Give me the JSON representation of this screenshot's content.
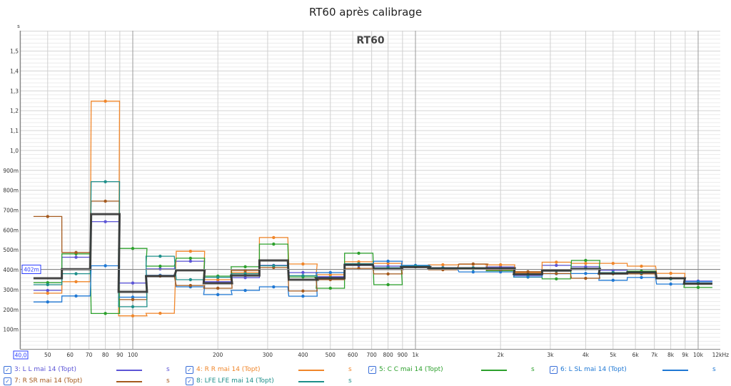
{
  "chart_data": {
    "type": "line",
    "title": "RT60 après calibrage",
    "plot_label": "RT60",
    "ylabel": "s",
    "xunit": "kHz",
    "x_scale": "log",
    "xlim": [
      40,
      12000
    ],
    "ylim": [
      0,
      1.6
    ],
    "grid": true,
    "cursor": {
      "y_label": "402m",
      "y_value": 0.402,
      "x_label": "40,0"
    },
    "x_ticks": [
      {
        "v": 50,
        "l": "50"
      },
      {
        "v": 60,
        "l": "60"
      },
      {
        "v": 70,
        "l": "70"
      },
      {
        "v": 80,
        "l": "80"
      },
      {
        "v": 90,
        "l": "90"
      },
      {
        "v": 100,
        "l": "100"
      },
      {
        "v": 200,
        "l": "200"
      },
      {
        "v": 300,
        "l": "300"
      },
      {
        "v": 400,
        "l": "400"
      },
      {
        "v": 500,
        "l": "500"
      },
      {
        "v": 600,
        "l": "600"
      },
      {
        "v": 700,
        "l": "700"
      },
      {
        "v": 800,
        "l": "800"
      },
      {
        "v": 900,
        "l": "900"
      },
      {
        "v": 1000,
        "l": "1k"
      },
      {
        "v": 2000,
        "l": "2k"
      },
      {
        "v": 3000,
        "l": "3k"
      },
      {
        "v": 4000,
        "l": "4k"
      },
      {
        "v": 5000,
        "l": "5k"
      },
      {
        "v": 6000,
        "l": "6k"
      },
      {
        "v": 7000,
        "l": "7k"
      },
      {
        "v": 8000,
        "l": "8k"
      },
      {
        "v": 9000,
        "l": "9k"
      },
      {
        "v": 10000,
        "l": "10k"
      },
      {
        "v": 12000,
        "l": "12kHz"
      }
    ],
    "y_ticks": [
      {
        "v": 0.1,
        "l": "100m"
      },
      {
        "v": 0.2,
        "l": "200m"
      },
      {
        "v": 0.3,
        "l": "300m"
      },
      {
        "v": 0.4,
        "l": "400m"
      },
      {
        "v": 0.5,
        "l": "500m"
      },
      {
        "v": 0.6,
        "l": "600m"
      },
      {
        "v": 0.7,
        "l": "700m"
      },
      {
        "v": 0.8,
        "l": "800m"
      },
      {
        "v": 0.9,
        "l": "900m"
      },
      {
        "v": 1.0,
        "l": "1,0"
      },
      {
        "v": 1.1,
        "l": "1,1"
      },
      {
        "v": 1.2,
        "l": "1,2"
      },
      {
        "v": 1.3,
        "l": "1,3"
      },
      {
        "v": 1.4,
        "l": "1,4"
      },
      {
        "v": 1.5,
        "l": "1,5"
      }
    ],
    "bands_hz": [
      50,
      63,
      80,
      100,
      125,
      160,
      200,
      250,
      315,
      400,
      500,
      630,
      800,
      1000,
      1250,
      1600,
      2000,
      2500,
      3150,
      4000,
      5000,
      6300,
      8000,
      10000
    ],
    "series": [
      {
        "name": "3: L L mai 14 (Topt)",
        "unit": "s",
        "color": "#5c55d6",
        "values": [
          0.296,
          0.463,
          0.642,
          0.333,
          0.404,
          0.443,
          0.34,
          0.36,
          0.422,
          0.386,
          0.365,
          0.422,
          0.418,
          0.42,
          0.41,
          0.41,
          0.414,
          0.371,
          0.422,
          0.415,
          0.397,
          0.39,
          0.355,
          0.343
        ]
      },
      {
        "name": "4: R R mai 14 (Topt)",
        "unit": "s",
        "color": "#f0862a",
        "values": [
          0.282,
          0.34,
          1.248,
          0.168,
          0.181,
          0.493,
          0.35,
          0.386,
          0.562,
          0.429,
          0.375,
          0.44,
          0.432,
          0.418,
          0.425,
          0.428,
          0.425,
          0.385,
          0.438,
          0.432,
          0.432,
          0.418,
          0.382,
          0.33
        ]
      },
      {
        "name": "5: C C mai 14 (Topt)",
        "unit": "s",
        "color": "#2ca02c",
        "values": [
          0.335,
          0.48,
          0.18,
          0.507,
          0.418,
          0.458,
          0.368,
          0.415,
          0.529,
          0.364,
          0.307,
          0.483,
          0.325,
          0.415,
          0.403,
          0.405,
          0.395,
          0.363,
          0.354,
          0.447,
          0.385,
          0.393,
          0.355,
          0.311
        ]
      },
      {
        "name": "6: L SL mai 14 (Topt)",
        "unit": "s",
        "color": "#1f78d4",
        "values": [
          0.238,
          0.268,
          0.42,
          0.262,
          0.372,
          0.314,
          0.275,
          0.296,
          0.314,
          0.267,
          0.386,
          0.425,
          0.443,
          0.422,
          0.41,
          0.389,
          0.389,
          0.364,
          0.38,
          0.381,
          0.347,
          0.361,
          0.328,
          0.34
        ]
      },
      {
        "name": "7: R SR mai 14 (Topt)",
        "unit": "s",
        "color": "#a45a1e",
        "values": [
          0.668,
          0.487,
          0.745,
          0.25,
          0.368,
          0.321,
          0.307,
          0.396,
          0.411,
          0.293,
          0.35,
          0.407,
          0.379,
          0.415,
          0.4,
          0.429,
          0.4,
          0.39,
          0.381,
          0.357,
          0.38,
          0.379,
          0.357,
          0.33
        ]
      },
      {
        "name": "8: LFE LFE mai 14 (Topt)",
        "unit": "s",
        "color": "#1e8f8a",
        "values": [
          0.325,
          0.38,
          0.843,
          0.214,
          0.468,
          0.35,
          0.362,
          0.38,
          0.42,
          0.37,
          0.36,
          0.43,
          0.41,
          0.418,
          0.408,
          0.41,
          0.405,
          0.375,
          0.395,
          0.405,
          0.385,
          0.385,
          0.355,
          0.332
        ]
      },
      {
        "color": "#333333",
        "values": [
          0.357,
          0.403,
          0.68,
          0.289,
          0.368,
          0.397,
          0.332,
          0.371,
          0.447,
          0.35,
          0.357,
          0.425,
          0.404,
          0.413,
          0.407,
          0.407,
          0.407,
          0.378,
          0.396,
          0.404,
          0.381,
          0.387,
          0.357,
          0.33
        ]
      }
    ]
  }
}
